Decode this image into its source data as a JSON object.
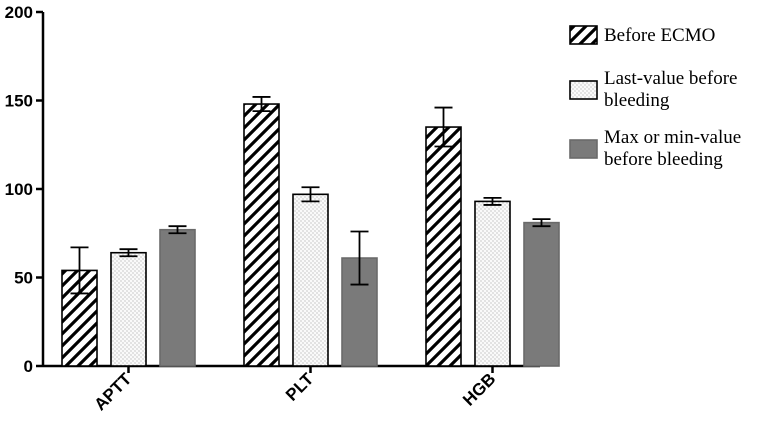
{
  "chart_data": {
    "type": "bar",
    "title": "",
    "xlabel": "",
    "ylabel": "",
    "ylim": [
      0,
      200
    ],
    "yticks": [
      0,
      50,
      100,
      150,
      200
    ],
    "categories": [
      "APTT",
      "PLT",
      "HGB"
    ],
    "series": [
      {
        "name": "Before ECMO",
        "pattern": "diagonal-hatch",
        "values": [
          54,
          148,
          135
        ],
        "errors": [
          13,
          4,
          11
        ]
      },
      {
        "name": "Last-value before bleeding",
        "pattern": "dotted",
        "values": [
          64,
          97,
          93
        ],
        "errors": [
          2,
          4,
          2
        ]
      },
      {
        "name": "Max or min-value before bleeding",
        "pattern": "solid-gray",
        "values": [
          77,
          61,
          81
        ],
        "errors": [
          2,
          15,
          2
        ]
      }
    ],
    "legend": {
      "position": "top-right",
      "lines": [
        [
          "Before ECMO"
        ],
        [
          "Last-value before",
          "bleeding"
        ],
        [
          "Max or min-value",
          "before bleeding"
        ]
      ]
    },
    "colors": {
      "solid_fill": "#7a7a7a",
      "stroke": "#000000",
      "dot_bg": "#fafafa"
    }
  }
}
